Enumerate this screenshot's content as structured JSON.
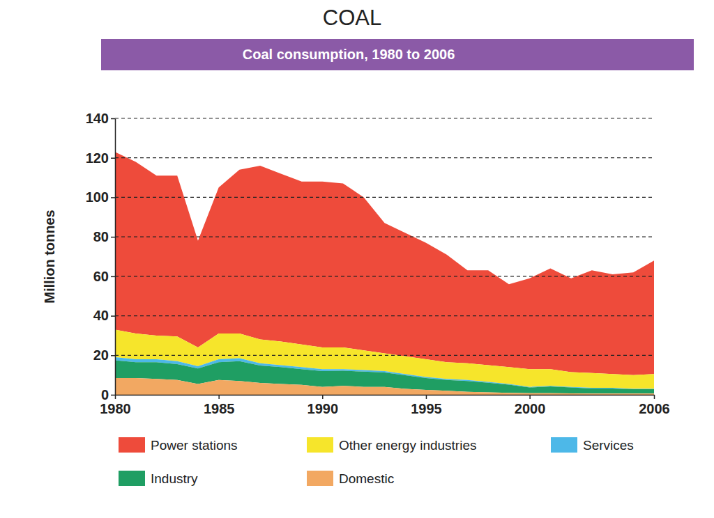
{
  "chart_data": {
    "type": "area",
    "title": "COAL",
    "subtitle": "Coal consumption, 1980 to 2006",
    "y_label": "Million tonnes",
    "stacked": true,
    "grid": true,
    "legend": "bottom",
    "x": [
      1980,
      1981,
      1982,
      1983,
      1984,
      1985,
      1986,
      1987,
      1988,
      1989,
      1990,
      1991,
      1992,
      1993,
      1994,
      1995,
      1996,
      1997,
      1998,
      1999,
      2000,
      2001,
      2002,
      2003,
      2004,
      2005,
      2006
    ],
    "xlim": [
      1980,
      2006
    ],
    "xticks": [
      1980,
      1985,
      1990,
      1995,
      2000,
      2006
    ],
    "ylim": [
      0,
      140
    ],
    "yticks": [
      0,
      20,
      40,
      60,
      80,
      100,
      120,
      140
    ],
    "series": [
      {
        "name": "Power stations",
        "color": "#ee4b3b",
        "values": [
          90,
          87,
          81,
          81.5,
          54,
          74,
          83,
          88,
          85,
          82.5,
          84,
          83,
          77.5,
          66,
          62.5,
          59,
          54.5,
          47,
          48,
          42,
          46,
          51,
          47.5,
          52,
          50.5,
          52,
          57.5
        ]
      },
      {
        "name": "Other energy industries",
        "color": "#f6e52b",
        "values": [
          14,
          13,
          12,
          12.5,
          9.5,
          13,
          12.5,
          12,
          12,
          11.5,
          11,
          11,
          10,
          9,
          9,
          9,
          8.5,
          8.5,
          8.5,
          8.5,
          9,
          8.5,
          7.5,
          7.5,
          7,
          7,
          7.5
        ]
      },
      {
        "name": "Services",
        "color": "#4db8e8",
        "values": [
          1.5,
          1.5,
          1.5,
          1.5,
          1.2,
          1.5,
          1.5,
          1.2,
          1,
          1,
          1,
          0.8,
          0.8,
          0.7,
          0.6,
          0.5,
          0.5,
          0.5,
          0.4,
          0.4,
          0.3,
          0.3,
          0.3,
          0.3,
          0.3,
          0.2,
          0.2
        ]
      },
      {
        "name": "Industry",
        "color": "#1f9e63",
        "values": [
          9,
          8,
          8.5,
          8,
          7.8,
          9,
          10,
          8.8,
          8.5,
          8,
          8,
          7.7,
          7.7,
          7.3,
          6.9,
          6,
          5.5,
          5.5,
          4.9,
          4.1,
          2.9,
          3.4,
          3,
          2.6,
          2.6,
          2.2,
          2.2
        ]
      },
      {
        "name": "Domestic",
        "color": "#f2a862",
        "values": [
          8.5,
          8.5,
          8,
          7.5,
          5.5,
          7.5,
          7,
          6,
          5.5,
          5,
          4,
          4.5,
          4,
          4,
          3,
          2.5,
          2,
          1.5,
          1.2,
          1,
          0.8,
          0.8,
          0.7,
          0.6,
          0.6,
          0.6,
          0.6
        ]
      }
    ]
  }
}
